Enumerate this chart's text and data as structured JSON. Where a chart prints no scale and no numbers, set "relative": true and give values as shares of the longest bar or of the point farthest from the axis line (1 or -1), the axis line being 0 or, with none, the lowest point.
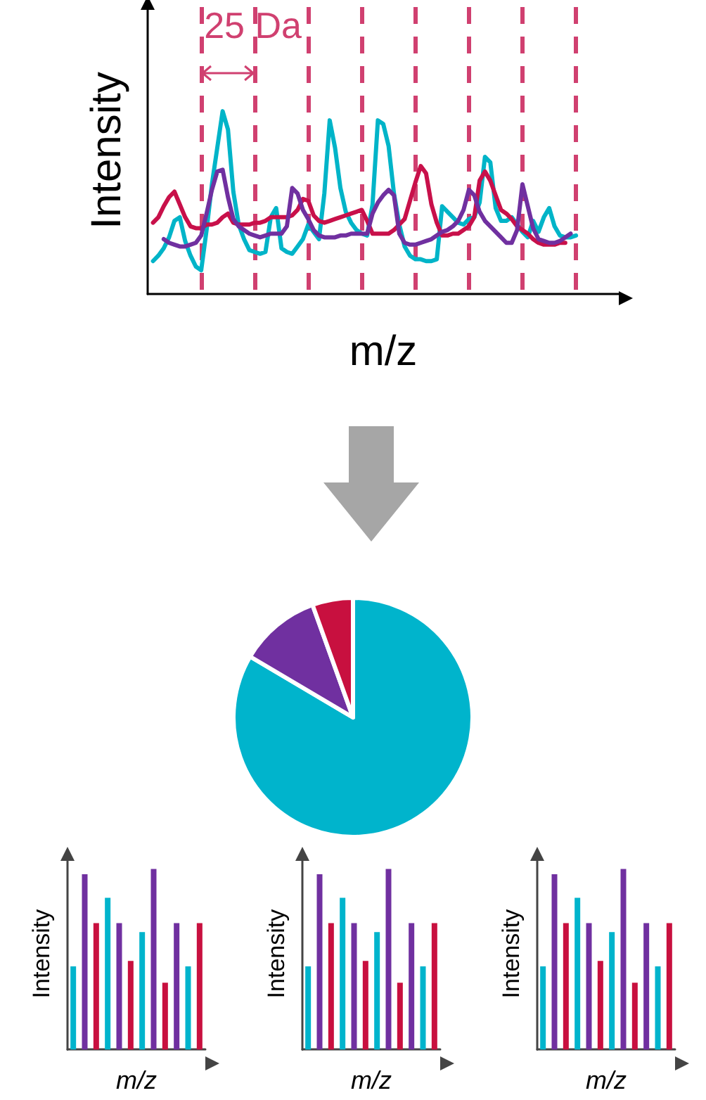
{
  "chart_data": [
    {
      "type": "line",
      "xlabel": "m/z",
      "ylabel": "Intensity",
      "relative": true,
      "marker": "none",
      "grid": "x",
      "annotations": [
        "25 Da"
      ],
      "categories": [
        null,
        null,
        null,
        null,
        null,
        null,
        null,
        null,
        null,
        null,
        null,
        null,
        null,
        null,
        null,
        null,
        null,
        null,
        null,
        null,
        null,
        null,
        null,
        null,
        null,
        null,
        null,
        null,
        null,
        null,
        null,
        null,
        null,
        null,
        null,
        null,
        null,
        null,
        null,
        null,
        null,
        null,
        null,
        null,
        null,
        null,
        null,
        null,
        null,
        null,
        null,
        null,
        null,
        null,
        null,
        null,
        null,
        null,
        null,
        null,
        null,
        null,
        null,
        null,
        null,
        null,
        null,
        null,
        null,
        null,
        null,
        null,
        null,
        null,
        null,
        null,
        null,
        null,
        null,
        null,
        null,
        null,
        null,
        null,
        null,
        null,
        null,
        null,
        null
      ],
      "series": [
        {
          "color": "#00b4c8",
          "values": [
            null,
            0.18,
            0.21,
            0.25,
            0.31,
            0.4,
            0.42,
            0.29,
            0.21,
            0.15,
            0.13,
            0.35,
            0.6,
            0.8,
            1.0,
            0.9,
            0.56,
            0.38,
            0.3,
            0.24,
            0.23,
            0.22,
            0.23,
            0.42,
            0.47,
            0.25,
            0.23,
            0.22,
            0.26,
            0.3,
            0.38,
            0.34,
            0.3,
            0.55,
            0.95,
            0.8,
            0.58,
            0.45,
            0.39,
            0.35,
            0.33,
            0.32,
            0.49,
            0.95,
            0.93,
            0.81,
            0.55,
            0.38,
            0.26,
            0.21,
            0.19,
            0.19,
            0.18,
            0.18,
            0.19,
            0.48,
            0.45,
            0.42,
            0.39,
            0.38,
            0.41,
            0.42,
            0.5,
            0.75,
            0.72,
            0.47,
            0.4,
            0.4,
            0.42,
            0.38,
            0.34,
            0.31,
            0.4,
            0.34,
            0.42,
            0.47,
            0.37,
            0.32,
            0.31,
            0.31,
            0.32,
            null,
            null,
            null,
            null,
            null,
            null,
            null,
            null
          ]
        },
        {
          "color": "#c8104a",
          "values": [
            null,
            0.39,
            0.42,
            0.48,
            0.53,
            0.56,
            0.49,
            0.42,
            0.37,
            0.36,
            0.36,
            0.38,
            0.38,
            0.39,
            0.42,
            0.44,
            0.39,
            0.38,
            0.38,
            0.38,
            0.39,
            0.39,
            0.4,
            0.42,
            0.42,
            0.42,
            0.42,
            0.43,
            0.46,
            0.52,
            0.51,
            0.43,
            0.4,
            0.39,
            0.4,
            0.41,
            0.42,
            0.43,
            0.44,
            0.45,
            0.46,
            0.4,
            0.33,
            0.33,
            0.33,
            0.33,
            0.35,
            0.38,
            0.41,
            0.51,
            0.61,
            0.7,
            0.66,
            0.49,
            0.39,
            0.32,
            0.32,
            0.33,
            0.33,
            0.35,
            0.37,
            0.42,
            0.62,
            0.67,
            0.62,
            0.54,
            0.46,
            0.44,
            0.41,
            0.37,
            0.35,
            0.33,
            0.3,
            0.28,
            0.27,
            0.27,
            0.27,
            0.28,
            0.28,
            null,
            null,
            null,
            null,
            null,
            null,
            null,
            null,
            null,
            null
          ]
        },
        {
          "color": "#7030a0",
          "values": [
            null,
            null,
            null,
            0.3,
            0.28,
            0.27,
            0.26,
            0.26,
            0.27,
            0.28,
            0.32,
            0.44,
            0.57,
            0.67,
            0.68,
            0.53,
            0.41,
            0.37,
            0.35,
            0.33,
            0.32,
            0.31,
            0.32,
            0.33,
            0.33,
            0.33,
            0.37,
            0.58,
            0.55,
            0.46,
            0.41,
            0.35,
            0.32,
            0.31,
            0.31,
            0.31,
            0.32,
            0.32,
            0.33,
            0.33,
            0.33,
            0.33,
            0.44,
            0.5,
            0.54,
            0.57,
            0.54,
            0.33,
            0.28,
            0.27,
            0.27,
            0.28,
            0.29,
            0.3,
            0.32,
            0.34,
            0.35,
            0.37,
            0.4,
            0.46,
            0.57,
            0.54,
            0.45,
            0.4,
            0.37,
            0.34,
            0.31,
            0.28,
            0.28,
            0.35,
            0.6,
            0.48,
            0.36,
            0.3,
            0.29,
            0.28,
            0.28,
            0.29,
            0.31,
            0.33,
            null,
            null,
            null,
            null,
            null,
            null,
            null,
            null,
            null
          ]
        }
      ]
    },
    {
      "type": "pie",
      "categories": [
        null,
        null,
        null
      ],
      "values": [
        83.5,
        11,
        5.5
      ],
      "colors": [
        "#00b4cc",
        "#7030a0",
        "#c8103f"
      ]
    },
    {
      "type": "bar",
      "xlabel": "m/z",
      "ylabel": "Intensity",
      "relative": true,
      "categories": [
        null,
        null,
        null,
        null,
        null,
        null,
        null,
        null,
        null,
        null,
        null,
        null
      ],
      "values": [
        0.46,
        0.97,
        0.7,
        0.84,
        0.7,
        0.49,
        0.65,
        1,
        0.37,
        0.7,
        0.46,
        0.7
      ],
      "colors": [
        "#00b4cc",
        "#7030a0",
        "#c8103f",
        "#00b4cc",
        "#7030a0",
        "#c8103f",
        "#00b4cc",
        "#7030a0",
        "#c8103f",
        "#7030a0",
        "#00b4cc",
        "#c8103f"
      ]
    },
    {
      "type": "bar",
      "xlabel": "m/z",
      "ylabel": "Intensity",
      "relative": true,
      "categories": [
        null,
        null,
        null,
        null,
        null,
        null,
        null,
        null,
        null,
        null,
        null,
        null
      ],
      "values": [
        0.46,
        0.97,
        0.7,
        0.84,
        0.7,
        0.49,
        0.65,
        1,
        0.37,
        0.7,
        0.46,
        0.7
      ],
      "colors": [
        "#00b4cc",
        "#7030a0",
        "#c8103f",
        "#00b4cc",
        "#7030a0",
        "#c8103f",
        "#00b4cc",
        "#7030a0",
        "#c8103f",
        "#7030a0",
        "#00b4cc",
        "#c8103f"
      ]
    },
    {
      "type": "bar",
      "xlabel": "m/z",
      "ylabel": "Intensity",
      "relative": true,
      "categories": [
        null,
        null,
        null,
        null,
        null,
        null,
        null,
        null,
        null,
        null,
        null,
        null
      ],
      "values": [
        0.46,
        0.97,
        0.7,
        0.84,
        0.7,
        0.49,
        0.65,
        1,
        0.37,
        0.7,
        0.46,
        0.7
      ],
      "colors": [
        "#00b4cc",
        "#7030a0",
        "#c8103f",
        "#00b4cc",
        "#7030a0",
        "#c8103f",
        "#00b4cc",
        "#7030a0",
        "#c8103f",
        "#7030a0",
        "#00b4cc",
        "#c8103f"
      ]
    }
  ]
}
